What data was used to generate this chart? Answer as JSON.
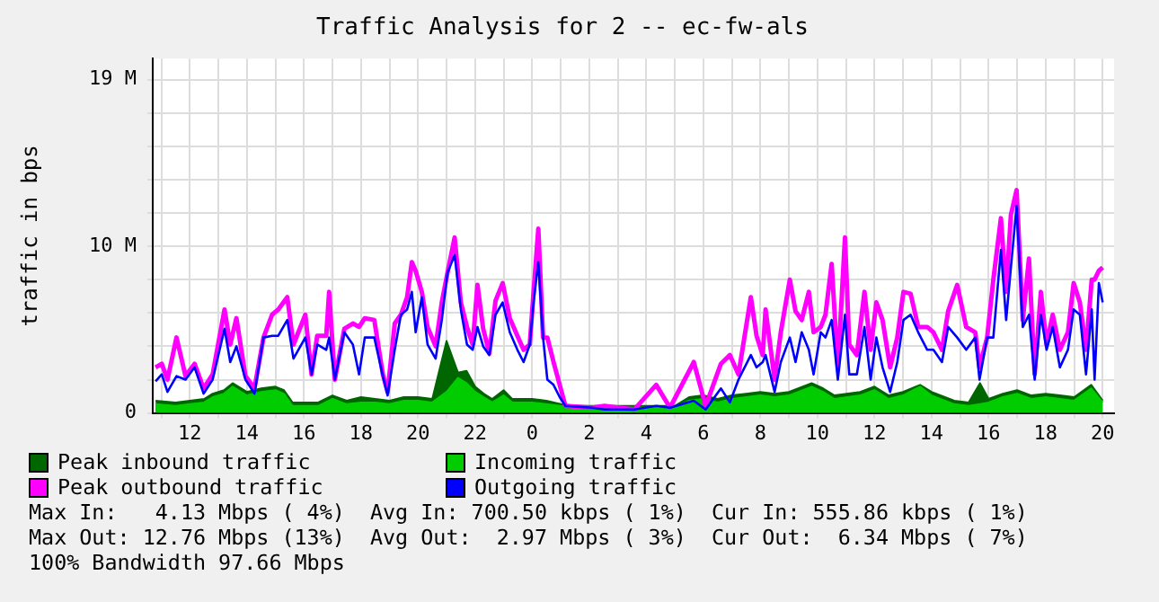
{
  "chart_data": {
    "type": "line",
    "title": "Traffic Analysis for 2 -- ec-fw-als",
    "ylabel": "traffic in bps",
    "x": [
      "--01-01T10:48",
      "--01-01T11:01",
      "--01-01T11:13",
      "--01-01T11:32",
      "--01-01T11:51",
      "--01-01T12:10",
      "--01-01T12:29",
      "--01-01T12:48",
      "--01-01T13:13",
      "--01-01T13:25",
      "--01-01T13:38",
      "--01-01T13:57",
      "--01-01T14:16",
      "--01-01T14:35",
      "--01-01T14:53",
      "--01-01T15:06",
      "--01-01T15:25",
      "--01-01T15:38",
      "--01-01T16:03",
      "--01-01T16:16",
      "--01-01T16:28",
      "--01-01T16:47",
      "--01-01T16:53",
      "--01-01T17:05",
      "--01-01T17:25",
      "--01-01T17:43",
      "--01-01T17:56",
      "--01-01T18:08",
      "--01-01T18:28",
      "--01-01T18:46",
      "--01-01T18:56",
      "--01-01T19:11",
      "--01-01T19:24",
      "--01-01T19:37",
      "--01-01T19:47",
      "--01-01T19:55",
      "--01-01T20:08",
      "--01-01T20:20",
      "--01-01T20:37",
      "--01-01T20:50",
      "--01-01T21:02",
      "--01-01T21:17",
      "--01-01T21:30",
      "--01-01T21:43",
      "--01-01T21:55",
      "--01-01T22:05",
      "--01-01T22:17",
      "--01-01T22:30",
      "--01-01T22:43",
      "--01-01T22:58",
      "--01-01T23:13",
      "--01-01T23:29",
      "--01-01T23:42",
      "--01-01T23:55",
      "--01-02T00:03",
      "--01-02T00:13",
      "--01-02T00:23",
      "--01-02T00:32",
      "--01-02T00:45",
      "--01-02T00:58",
      "--01-02T01:10",
      "--01-02T02:06",
      "--01-02T02:32",
      "--01-02T03:35",
      "--01-02T04:21",
      "--01-02T04:50",
      "--01-02T05:40",
      "--01-02T06:05",
      "--01-02T06:37",
      "--01-02T06:56",
      "--01-02T07:14",
      "--01-02T07:40",
      "--01-02T07:52",
      "--01-02T08:05",
      "--01-02T08:11",
      "--01-02T08:30",
      "--01-02T08:43",
      "--01-02T09:02",
      "--01-02T09:14",
      "--01-02T09:27",
      "--01-02T09:42",
      "--01-02T09:52",
      "--01-02T10:07",
      "--01-02T10:17",
      "--01-02T10:30",
      "--01-02T10:43",
      "--01-02T10:58",
      "--01-02T11:07",
      "--01-02T11:23",
      "--01-02T11:39",
      "--01-02T11:52",
      "--01-02T12:04",
      "--01-02T12:17",
      "--01-02T12:33",
      "--01-02T12:48",
      "--01-02T13:01",
      "--01-02T13:16",
      "--01-02T13:32",
      "--01-02T13:51",
      "--01-02T14:04",
      "--01-02T14:22",
      "--01-02T14:35",
      "--01-02T14:54",
      "--01-02T15:13",
      "--01-02T15:32",
      "--01-02T15:41",
      "--01-02T15:57",
      "--01-02T16:10",
      "--01-02T16:26",
      "--01-02T16:37",
      "--01-02T16:47",
      "--01-02T16:59",
      "--01-02T17:12",
      "--01-02T17:25",
      "--01-02T17:37",
      "--01-02T17:50",
      "--01-02T18:02",
      "--01-02T18:15",
      "--01-02T18:30",
      "--01-02T18:47",
      "--01-02T18:59",
      "--01-02T19:12",
      "--01-02T19:25",
      "--01-02T19:37",
      "--01-02T19:43",
      "--01-02T19:52",
      "--01-02T20:00"
    ],
    "series": [
      {
        "name": "Peak inbound traffic",
        "type": "area",
        "color": "#006600",
        "x": [
          "--01-01T10:48",
          "--01-01T11:30",
          "--01-01T12:00",
          "--01-01T12:30",
          "--01-01T12:48",
          "--01-01T13:12",
          "--01-01T13:30",
          "--01-01T14:00",
          "--01-01T14:30",
          "--01-01T15:00",
          "--01-01T15:18",
          "--01-01T15:36",
          "--01-01T16:30",
          "--01-01T17:00",
          "--01-01T17:30",
          "--01-01T18:00",
          "--01-01T18:30",
          "--01-01T19:00",
          "--01-01T19:30",
          "--01-01T20:00",
          "--01-01T20:30",
          "--01-01T21:00",
          "--01-01T21:24",
          "--01-01T21:42",
          "--01-01T22:00",
          "--01-01T22:18",
          "--01-01T22:36",
          "--01-01T23:00",
          "--01-01T23:18",
          "--01-02T00:00",
          "--01-02T00:30",
          "--01-02T01:00",
          "--01-02T01:30",
          "--01-02T03:00",
          "--01-02T04:00",
          "--01-02T05:00",
          "--01-02T05:30",
          "--01-02T06:00",
          "--01-02T06:30",
          "--01-02T07:00",
          "--01-02T07:30",
          "--01-02T08:00",
          "--01-02T08:30",
          "--01-02T09:00",
          "--01-02T09:48",
          "--01-02T10:12",
          "--01-02T10:36",
          "--01-02T11:30",
          "--01-02T12:00",
          "--01-02T12:30",
          "--01-02T13:00",
          "--01-02T13:36",
          "--01-02T14:00",
          "--01-02T14:48",
          "--01-02T15:18",
          "--01-02T15:42",
          "--01-02T16:00",
          "--01-02T16:30",
          "--01-02T17:00",
          "--01-02T17:30",
          "--01-02T18:00",
          "--01-02T18:30",
          "--01-02T19:00",
          "--01-02T19:36",
          "--01-02T20:00"
        ],
        "values": [
          0.7,
          0.6,
          0.7,
          0.8,
          1.1,
          1.3,
          1.7,
          1.2,
          1.4,
          1.5,
          1.3,
          0.6,
          0.6,
          1.0,
          0.7,
          0.9,
          0.8,
          0.7,
          0.9,
          0.9,
          0.8,
          4.1,
          2.3,
          2.4,
          1.5,
          1.1,
          0.8,
          1.3,
          0.8,
          0.8,
          0.7,
          0.5,
          0.4,
          0.4,
          0.4,
          0.4,
          0.9,
          1.0,
          0.8,
          1.0,
          1.1,
          1.2,
          1.1,
          1.2,
          1.7,
          1.4,
          1.0,
          1.2,
          1.5,
          1.0,
          1.2,
          1.6,
          1.2,
          0.7,
          0.6,
          1.7,
          0.8,
          1.1,
          1.3,
          1.0,
          1.1,
          1.0,
          0.9,
          1.6,
          0.7
        ]
      },
      {
        "name": "Incoming traffic",
        "type": "area",
        "color": "#00cc00",
        "x": [
          "--01-01T10:48",
          "--01-01T11:30",
          "--01-01T12:00",
          "--01-01T12:30",
          "--01-01T12:48",
          "--01-01T13:12",
          "--01-01T13:30",
          "--01-01T14:00",
          "--01-01T14:30",
          "--01-01T15:00",
          "--01-01T15:18",
          "--01-01T15:36",
          "--01-01T16:30",
          "--01-01T17:00",
          "--01-01T17:30",
          "--01-01T18:00",
          "--01-01T18:30",
          "--01-01T19:00",
          "--01-01T19:30",
          "--01-01T20:00",
          "--01-01T20:30",
          "--01-01T21:00",
          "--01-01T21:24",
          "--01-01T21:42",
          "--01-01T22:00",
          "--01-01T22:18",
          "--01-01T22:36",
          "--01-01T23:00",
          "--01-01T23:18",
          "--01-02T00:00",
          "--01-02T00:30",
          "--01-02T01:00",
          "--01-02T01:30",
          "--01-02T03:00",
          "--01-02T04:00",
          "--01-02T05:00",
          "--01-02T05:30",
          "--01-02T06:00",
          "--01-02T06:30",
          "--01-02T07:00",
          "--01-02T07:30",
          "--01-02T08:00",
          "--01-02T08:30",
          "--01-02T09:00",
          "--01-02T09:48",
          "--01-02T10:12",
          "--01-02T10:36",
          "--01-02T11:30",
          "--01-02T12:00",
          "--01-02T12:30",
          "--01-02T13:00",
          "--01-02T13:36",
          "--01-02T14:00",
          "--01-02T14:48",
          "--01-02T15:18",
          "--01-02T15:42",
          "--01-02T16:00",
          "--01-02T16:30",
          "--01-02T17:00",
          "--01-02T17:30",
          "--01-02T18:00",
          "--01-02T18:30",
          "--01-02T19:00",
          "--01-02T19:36",
          "--01-02T20:00"
        ],
        "values": [
          0.5,
          0.4,
          0.5,
          0.6,
          0.9,
          1.1,
          1.5,
          1.0,
          1.2,
          1.3,
          1.1,
          0.4,
          0.4,
          0.8,
          0.5,
          0.6,
          0.6,
          0.5,
          0.7,
          0.7,
          0.6,
          1.2,
          2.0,
          1.7,
          1.2,
          0.9,
          0.6,
          1.0,
          0.6,
          0.6,
          0.5,
          0.4,
          0.3,
          0.3,
          0.3,
          0.3,
          0.7,
          0.8,
          0.6,
          0.8,
          0.9,
          1.0,
          0.9,
          1.0,
          1.5,
          1.2,
          0.8,
          1.0,
          1.3,
          0.8,
          1.0,
          1.5,
          1.0,
          0.5,
          0.4,
          0.5,
          0.6,
          0.9,
          1.1,
          0.8,
          0.9,
          0.8,
          0.7,
          1.4,
          0.6
        ]
      },
      {
        "name": "Peak outbound traffic",
        "type": "line",
        "color": "#ff00ff",
        "values": [
          2.6,
          2.8,
          1.9,
          4.3,
          2.1,
          2.8,
          1.4,
          2.2,
          5.9,
          3.9,
          5.4,
          2.1,
          1.4,
          4.3,
          5.6,
          5.9,
          6.6,
          3.9,
          5.6,
          2.2,
          4.4,
          4.4,
          6.9,
          1.9,
          4.8,
          5.1,
          4.9,
          5.4,
          5.3,
          2.2,
          1.2,
          5.1,
          5.6,
          6.6,
          8.6,
          8.1,
          6.9,
          4.9,
          3.8,
          6.3,
          8.0,
          10.0,
          6.3,
          4.9,
          3.9,
          7.3,
          4.8,
          3.4,
          6.4,
          7.4,
          5.4,
          4.4,
          3.6,
          3.9,
          6.9,
          10.5,
          4.3,
          4.3,
          2.9,
          1.6,
          0.4,
          0.3,
          0.4,
          0.2,
          1.6,
          0.3,
          2.9,
          0.4,
          2.8,
          3.3,
          2.2,
          6.6,
          4.4,
          3.3,
          5.9,
          1.9,
          4.6,
          7.6,
          5.8,
          5.3,
          6.9,
          4.6,
          4.9,
          5.6,
          8.5,
          2.6,
          10.0,
          3.9,
          3.3,
          6.9,
          3.6,
          6.3,
          5.3,
          2.6,
          4.3,
          6.9,
          6.8,
          4.9,
          4.9,
          4.6,
          3.6,
          5.8,
          7.3,
          4.9,
          4.6,
          2.6,
          4.3,
          7.6,
          11.1,
          6.9,
          11.3,
          12.7,
          5.3,
          8.8,
          2.2,
          6.9,
          3.9,
          5.6,
          3.6,
          4.6,
          7.4,
          6.3,
          3.6,
          7.6,
          7.6,
          8.1,
          8.3
        ]
      },
      {
        "name": "Outgoing traffic",
        "type": "line",
        "color": "#0000ff",
        "values": [
          1.8,
          2.2,
          1.2,
          2.1,
          1.9,
          2.6,
          1.1,
          1.9,
          4.8,
          2.9,
          3.8,
          1.9,
          1.1,
          4.3,
          4.4,
          4.4,
          5.3,
          3.1,
          4.3,
          2.2,
          3.9,
          3.6,
          4.3,
          1.9,
          4.6,
          3.9,
          2.2,
          4.3,
          4.3,
          2.1,
          1.0,
          3.6,
          5.6,
          5.9,
          6.9,
          4.6,
          6.6,
          3.9,
          3.1,
          5.3,
          8.0,
          9.0,
          5.9,
          3.9,
          3.6,
          4.9,
          3.8,
          3.3,
          5.6,
          6.3,
          4.6,
          3.6,
          2.9,
          3.9,
          6.3,
          8.6,
          4.3,
          1.9,
          1.6,
          0.9,
          0.4,
          0.3,
          0.2,
          0.2,
          0.4,
          0.3,
          0.7,
          0.2,
          1.4,
          0.6,
          1.9,
          3.3,
          2.6,
          2.9,
          3.3,
          1.2,
          2.9,
          4.3,
          2.9,
          4.6,
          3.6,
          2.2,
          4.6,
          4.3,
          5.3,
          1.9,
          5.6,
          2.2,
          2.2,
          4.9,
          1.9,
          4.3,
          2.6,
          1.2,
          2.9,
          5.3,
          5.6,
          4.6,
          3.6,
          3.6,
          2.9,
          4.9,
          4.3,
          3.6,
          4.3,
          1.9,
          4.3,
          4.3,
          9.3,
          5.3,
          8.3,
          11.8,
          4.9,
          5.6,
          1.9,
          5.6,
          3.6,
          4.9,
          2.6,
          3.6,
          5.9,
          5.6,
          2.2,
          5.9,
          1.9,
          7.4,
          6.3
        ]
      }
    ],
    "xlim": [
      "--01-01T10:42",
      "--01-02T20:24"
    ],
    "xticks": [
      {
        "value": "--01-01T11:00",
        "label": null
      },
      {
        "value": "--01-01T12:00",
        "label": "12"
      },
      {
        "value": "--01-01T13:00",
        "label": null
      },
      {
        "value": "--01-01T14:00",
        "label": "14"
      },
      {
        "value": "--01-01T15:00",
        "label": null
      },
      {
        "value": "--01-01T16:00",
        "label": "16"
      },
      {
        "value": "--01-01T17:00",
        "label": null
      },
      {
        "value": "--01-01T18:00",
        "label": "18"
      },
      {
        "value": "--01-01T19:00",
        "label": null
      },
      {
        "value": "--01-01T20:00",
        "label": "20"
      },
      {
        "value": "--01-01T21:00",
        "label": null
      },
      {
        "value": "--01-01T22:00",
        "label": "22"
      },
      {
        "value": "--01-01T23:00",
        "label": null
      },
      {
        "value": "--01-02T00:00",
        "label": "0"
      },
      {
        "value": "--01-02T01:00",
        "label": null
      },
      {
        "value": "--01-02T02:00",
        "label": "2"
      },
      {
        "value": "--01-02T03:00",
        "label": null
      },
      {
        "value": "--01-02T04:00",
        "label": "4"
      },
      {
        "value": "--01-02T05:00",
        "label": null
      },
      {
        "value": "--01-02T06:00",
        "label": "6"
      },
      {
        "value": "--01-02T07:00",
        "label": null
      },
      {
        "value": "--01-02T08:00",
        "label": "8"
      },
      {
        "value": "--01-02T09:00",
        "label": null
      },
      {
        "value": "--01-02T10:00",
        "label": "10"
      },
      {
        "value": "--01-02T11:00",
        "label": null
      },
      {
        "value": "--01-02T12:00",
        "label": "12"
      },
      {
        "value": "--01-02T13:00",
        "label": null
      },
      {
        "value": "--01-02T14:00",
        "label": "14"
      },
      {
        "value": "--01-02T15:00",
        "label": null
      },
      {
        "value": "--01-02T16:00",
        "label": "16"
      },
      {
        "value": "--01-02T17:00",
        "label": null
      },
      {
        "value": "--01-02T18:00",
        "label": "18"
      },
      {
        "value": "--01-02T19:00",
        "label": null
      },
      {
        "value": "--01-02T20:00",
        "label": "20"
      }
    ],
    "ylim": [
      0,
      20.2
    ],
    "yticks": [
      0,
      {
        "value": 1.9,
        "label": null
      },
      {
        "value": 3.8,
        "label": null
      },
      {
        "value": 5.7,
        "label": null
      },
      {
        "value": 7.6,
        "label": null
      },
      {
        "value": 9.5,
        "label": "10 M"
      },
      {
        "value": 11.4,
        "label": null
      },
      {
        "value": 13.3,
        "label": null
      },
      {
        "value": 15.2,
        "label": null
      },
      {
        "value": 17.1,
        "label": null
      },
      {
        "value": 19,
        "label": "19 M"
      }
    ],
    "grid": true,
    "legend": "bottom",
    "annotations": [
      "Max In:   4.13 Mbps ( 4%)  Avg In: 700.50 kbps ( 1%)  Cur In: 555.86 kbps ( 1%)",
      "Max Out: 12.76 Mbps (13%)  Avg Out:  2.97 Mbps ( 3%)  Cur Out:  6.34 Mbps ( 7%)",
      "100% Bandwidth 97.66 Mbps"
    ]
  }
}
